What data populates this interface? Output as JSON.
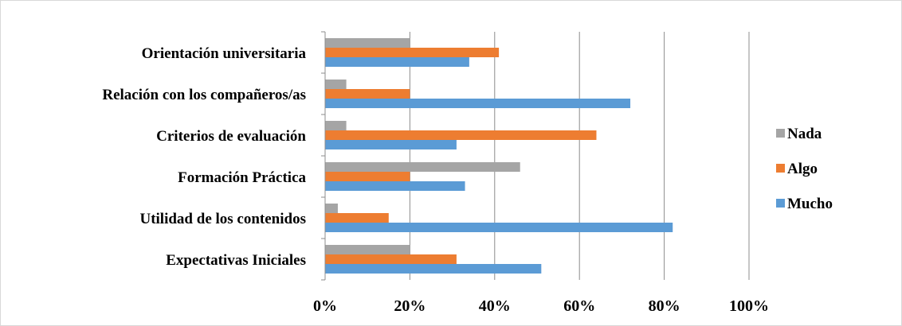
{
  "chart_data": {
    "type": "bar",
    "orientation": "horizontal",
    "categories": [
      "Expectativas Iniciales",
      "Utilidad de los contenidos",
      "Formación Práctica",
      "Criterios de evaluación",
      "Relación con los compañeros/as",
      "Orientación universitaria"
    ],
    "series": [
      {
        "name": "Mucho",
        "color": "#5b9bd5",
        "values": [
          0.51,
          0.82,
          0.33,
          0.31,
          0.72,
          0.34
        ]
      },
      {
        "name": "Algo",
        "color": "#ed7d31",
        "values": [
          0.31,
          0.15,
          0.2,
          0.64,
          0.2,
          0.41
        ]
      },
      {
        "name": "Nada",
        "color": "#a5a5a5",
        "values": [
          0.2,
          0.03,
          0.46,
          0.05,
          0.05,
          0.2
        ]
      }
    ],
    "xlim": [
      0,
      1
    ],
    "x_ticks": [
      "0%",
      "20%",
      "40%",
      "60%",
      "80%",
      "100%"
    ],
    "legend": {
      "position": "right",
      "order": [
        "Nada",
        "Algo",
        "Mucho"
      ]
    },
    "grid": true,
    "title": "",
    "xlabel": "",
    "ylabel": ""
  }
}
